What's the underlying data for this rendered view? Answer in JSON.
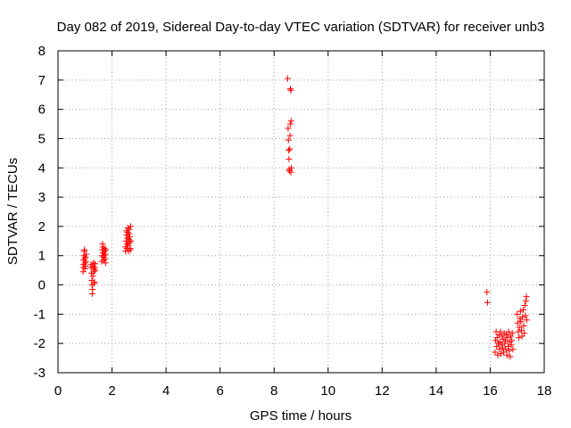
{
  "chart_data": {
    "type": "scatter",
    "title": "Day 082 of 2019, Sidereal Day-to-day VTEC variation (SDTVAR) for receiver unb3",
    "xlabel": "GPS time / hours",
    "ylabel": "SDTVAR / TECUs",
    "xlim": [
      0,
      18
    ],
    "ylim": [
      -3,
      8
    ],
    "xticks": [
      0,
      2,
      4,
      6,
      8,
      10,
      12,
      14,
      16,
      18
    ],
    "yticks": [
      -3,
      -2,
      -1,
      0,
      1,
      2,
      3,
      4,
      5,
      6,
      7,
      8
    ],
    "grid": true,
    "marker": "+",
    "color": "#ff0000",
    "series": [
      {
        "name": "SDTVAR",
        "points": [
          [
            0.93,
            0.45
          ],
          [
            0.94,
            0.6
          ],
          [
            0.95,
            0.7
          ],
          [
            0.95,
            0.85
          ],
          [
            0.96,
            1.0
          ],
          [
            0.97,
            1.15
          ],
          [
            0.98,
            1.2
          ],
          [
            0.99,
            0.9
          ],
          [
            1.0,
            0.75
          ],
          [
            1.0,
            0.55
          ],
          [
            1.01,
            0.65
          ],
          [
            1.02,
            0.95
          ],
          [
            1.03,
            0.8
          ],
          [
            1.04,
            1.05
          ],
          [
            1.22,
            0.6
          ],
          [
            1.23,
            0.7
          ],
          [
            1.24,
            0.4
          ],
          [
            1.25,
            0.15
          ],
          [
            1.26,
            0.0
          ],
          [
            1.27,
            -0.3
          ],
          [
            1.28,
            -0.15
          ],
          [
            1.29,
            0.3
          ],
          [
            1.3,
            0.65
          ],
          [
            1.31,
            0.75
          ],
          [
            1.32,
            0.55
          ],
          [
            1.33,
            0.45
          ],
          [
            1.34,
            0.05
          ],
          [
            1.35,
            0.1
          ],
          [
            1.36,
            0.6
          ],
          [
            1.37,
            0.72
          ],
          [
            1.38,
            0.5
          ],
          [
            1.62,
            0.8
          ],
          [
            1.63,
            1.0
          ],
          [
            1.64,
            1.2
          ],
          [
            1.65,
            1.4
          ],
          [
            1.66,
            1.3
          ],
          [
            1.67,
            1.1
          ],
          [
            1.68,
            0.95
          ],
          [
            1.7,
            0.85
          ],
          [
            1.71,
            1.0
          ],
          [
            1.72,
            1.25
          ],
          [
            1.73,
            1.15
          ],
          [
            1.74,
            0.9
          ],
          [
            1.75,
            1.05
          ],
          [
            1.76,
            0.75
          ],
          [
            1.77,
            1.2
          ],
          [
            2.5,
            1.15
          ],
          [
            2.51,
            1.3
          ],
          [
            2.52,
            1.5
          ],
          [
            2.53,
            1.7
          ],
          [
            2.54,
            1.85
          ],
          [
            2.55,
            1.25
          ],
          [
            2.56,
            1.4
          ],
          [
            2.57,
            1.6
          ],
          [
            2.58,
            1.8
          ],
          [
            2.59,
            1.95
          ],
          [
            2.6,
            1.35
          ],
          [
            2.61,
            1.15
          ],
          [
            2.62,
            1.55
          ],
          [
            2.63,
            1.75
          ],
          [
            2.64,
            1.9
          ],
          [
            2.65,
            1.45
          ],
          [
            2.66,
            1.65
          ],
          [
            2.67,
            1.25
          ],
          [
            2.68,
            1.2
          ],
          [
            2.69,
            2.0
          ],
          [
            2.7,
            1.5
          ],
          [
            8.5,
            7.05
          ],
          [
            8.52,
            5.35
          ],
          [
            8.53,
            4.95
          ],
          [
            8.54,
            4.6
          ],
          [
            8.55,
            4.3
          ],
          [
            8.56,
            3.95
          ],
          [
            8.57,
            3.9
          ],
          [
            8.58,
            4.65
          ],
          [
            8.59,
            5.1
          ],
          [
            8.6,
            5.5
          ],
          [
            8.6,
            6.7
          ],
          [
            8.62,
            6.65
          ],
          [
            8.62,
            3.85
          ],
          [
            8.63,
            5.6
          ],
          [
            8.64,
            4.0
          ],
          [
            15.88,
            -0.25
          ],
          [
            15.9,
            -0.6
          ],
          [
            16.18,
            -2.3
          ],
          [
            16.2,
            -1.9
          ],
          [
            16.22,
            -1.6
          ],
          [
            16.24,
            -2.1
          ],
          [
            16.26,
            -1.8
          ],
          [
            16.28,
            -2.4
          ],
          [
            16.3,
            -2.0
          ],
          [
            16.32,
            -1.7
          ],
          [
            16.34,
            -2.2
          ],
          [
            16.36,
            -1.95
          ],
          [
            16.38,
            -1.6
          ],
          [
            16.4,
            -2.35
          ],
          [
            16.42,
            -2.05
          ],
          [
            16.44,
            -1.75
          ],
          [
            16.46,
            -2.15
          ],
          [
            16.48,
            -1.85
          ],
          [
            16.5,
            -2.3
          ],
          [
            16.52,
            -1.65
          ],
          [
            16.54,
            -2.0
          ],
          [
            16.56,
            -1.9
          ],
          [
            16.58,
            -2.2
          ],
          [
            16.6,
            -1.7
          ],
          [
            16.62,
            -2.4
          ],
          [
            16.64,
            -1.8
          ],
          [
            16.66,
            -2.1
          ],
          [
            16.68,
            -1.6
          ],
          [
            16.7,
            -2.25
          ],
          [
            16.72,
            -1.95
          ],
          [
            16.74,
            -2.45
          ],
          [
            16.76,
            -1.75
          ],
          [
            16.78,
            -2.05
          ],
          [
            16.8,
            -1.9
          ],
          [
            16.82,
            -1.65
          ],
          [
            16.84,
            -2.2
          ],
          [
            17.0,
            -1.0
          ],
          [
            17.02,
            -1.3
          ],
          [
            17.04,
            -1.6
          ],
          [
            17.06,
            -1.8
          ],
          [
            17.08,
            -1.45
          ],
          [
            17.1,
            -1.15
          ],
          [
            17.12,
            -0.9
          ],
          [
            17.14,
            -1.25
          ],
          [
            17.16,
            -1.55
          ],
          [
            17.18,
            -1.75
          ],
          [
            17.2,
            -1.1
          ],
          [
            17.22,
            -0.85
          ],
          [
            17.24,
            -1.4
          ],
          [
            17.26,
            -1.65
          ],
          [
            17.28,
            -0.7
          ],
          [
            17.3,
            -1.05
          ],
          [
            17.32,
            -0.55
          ],
          [
            17.34,
            -0.4
          ],
          [
            17.35,
            -1.2
          ]
        ]
      }
    ]
  }
}
